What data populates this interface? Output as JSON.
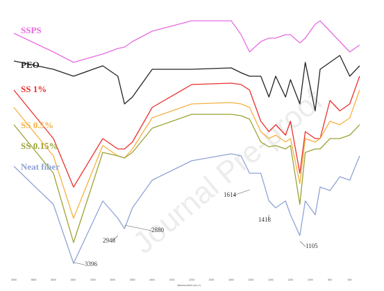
{
  "chart_data": {
    "type": "line",
    "xlabel": "Wavenumbers (cm-1)",
    "watermark": "Journal Pre-proof",
    "x": [
      4000,
      3600,
      3396,
      3100,
      2948,
      2880,
      2800,
      2600,
      2200,
      1800,
      1700,
      1614,
      1500,
      1418,
      1350,
      1250,
      1200,
      1105,
      1050,
      950,
      900,
      800,
      700,
      600,
      500
    ],
    "xlim": [
      4000,
      450
    ],
    "xticks": [
      4000,
      3800,
      3600,
      3400,
      3200,
      3000,
      2800,
      2600,
      2400,
      2200,
      2000,
      1800,
      1600,
      1400,
      1200,
      1000,
      800,
      600
    ],
    "ylim": [
      0,
      400
    ],
    "series": [
      {
        "name": "SSPS",
        "color": "#e86be0",
        "values": [
          352,
          325,
          310,
          322,
          330,
          332,
          340,
          355,
          370,
          370,
          350,
          325,
          340,
          345,
          345,
          350,
          350,
          338,
          345,
          365,
          370,
          355,
          340,
          325,
          335
        ]
      },
      {
        "name": "PEO",
        "color": "#222222",
        "values": [
          312,
          300,
          290,
          305,
          290,
          250,
          260,
          300,
          300,
          302,
          295,
          290,
          290,
          260,
          290,
          260,
          285,
          250,
          310,
          240,
          300,
          310,
          320,
          290,
          305
        ]
      },
      {
        "name": "SS 1%",
        "color": "#e8302c",
        "values": [
          270,
          200,
          130,
          200,
          185,
          185,
          195,
          245,
          278,
          280,
          278,
          270,
          225,
          210,
          220,
          205,
          225,
          150,
          210,
          200,
          200,
          255,
          240,
          250,
          290
        ]
      },
      {
        "name": "SS 0.5%",
        "color": "#f5b041",
        "values": [
          245,
          175,
          85,
          190,
          175,
          172,
          185,
          230,
          250,
          252,
          250,
          245,
          210,
          200,
          205,
          195,
          200,
          135,
          200,
          195,
          200,
          225,
          220,
          230,
          270
        ]
      },
      {
        "name": "SS 0.15%",
        "color": "#9aa233",
        "values": [
          220,
          150,
          50,
          180,
          175,
          172,
          180,
          215,
          235,
          235,
          233,
          228,
          195,
          188,
          190,
          185,
          190,
          105,
          180,
          185,
          185,
          200,
          200,
          205,
          220
        ]
      },
      {
        "name": "Neat fiber",
        "color": "#8fa3d3",
        "values": [
          160,
          105,
          20,
          110,
          85,
          70,
          100,
          140,
          168,
          178,
          175,
          150,
          150,
          110,
          100,
          110,
          90,
          60,
          110,
          90,
          130,
          125,
          145,
          140,
          175
        ]
      }
    ],
    "annotations": [
      3396,
      2948,
      2880,
      1614,
      1418,
      1105
    ]
  }
}
